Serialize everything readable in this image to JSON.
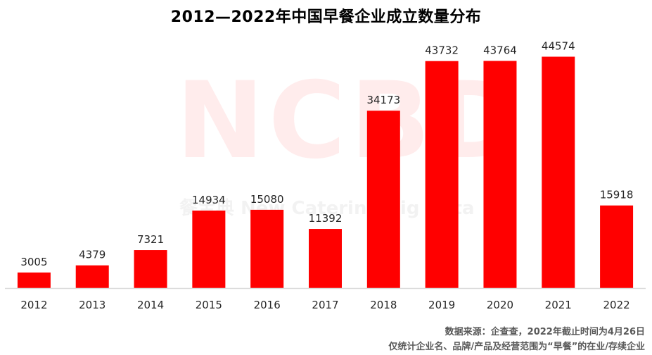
{
  "title": "2012—2022年中国早餐企业成立数量分布",
  "watermark": {
    "logo_text": "NCBD",
    "tagline": "餐宝典 New Catering Big Data"
  },
  "notes": {
    "source": "数据来源：企查查，2022年截止时间为4月26日",
    "scope": "仅统计企业名、品牌/产品及经营范围为“早餐”的在业/存续企业"
  },
  "colors": {
    "bar": "#ff0000",
    "axis": "#d9d9d9"
  },
  "chart_data": {
    "type": "bar",
    "title": "2012—2022年中国早餐企业成立数量分布",
    "categories": [
      "2012",
      "2013",
      "2014",
      "2015",
      "2016",
      "2017",
      "2018",
      "2019",
      "2020",
      "2021",
      "2022"
    ],
    "values": [
      3005,
      4379,
      7321,
      14934,
      15080,
      11392,
      34173,
      43732,
      43764,
      44574,
      15918
    ],
    "xlabel": "",
    "ylabel": "",
    "ylim": [
      0,
      46000
    ],
    "grid": false,
    "legend": "none",
    "data_labels": true
  }
}
